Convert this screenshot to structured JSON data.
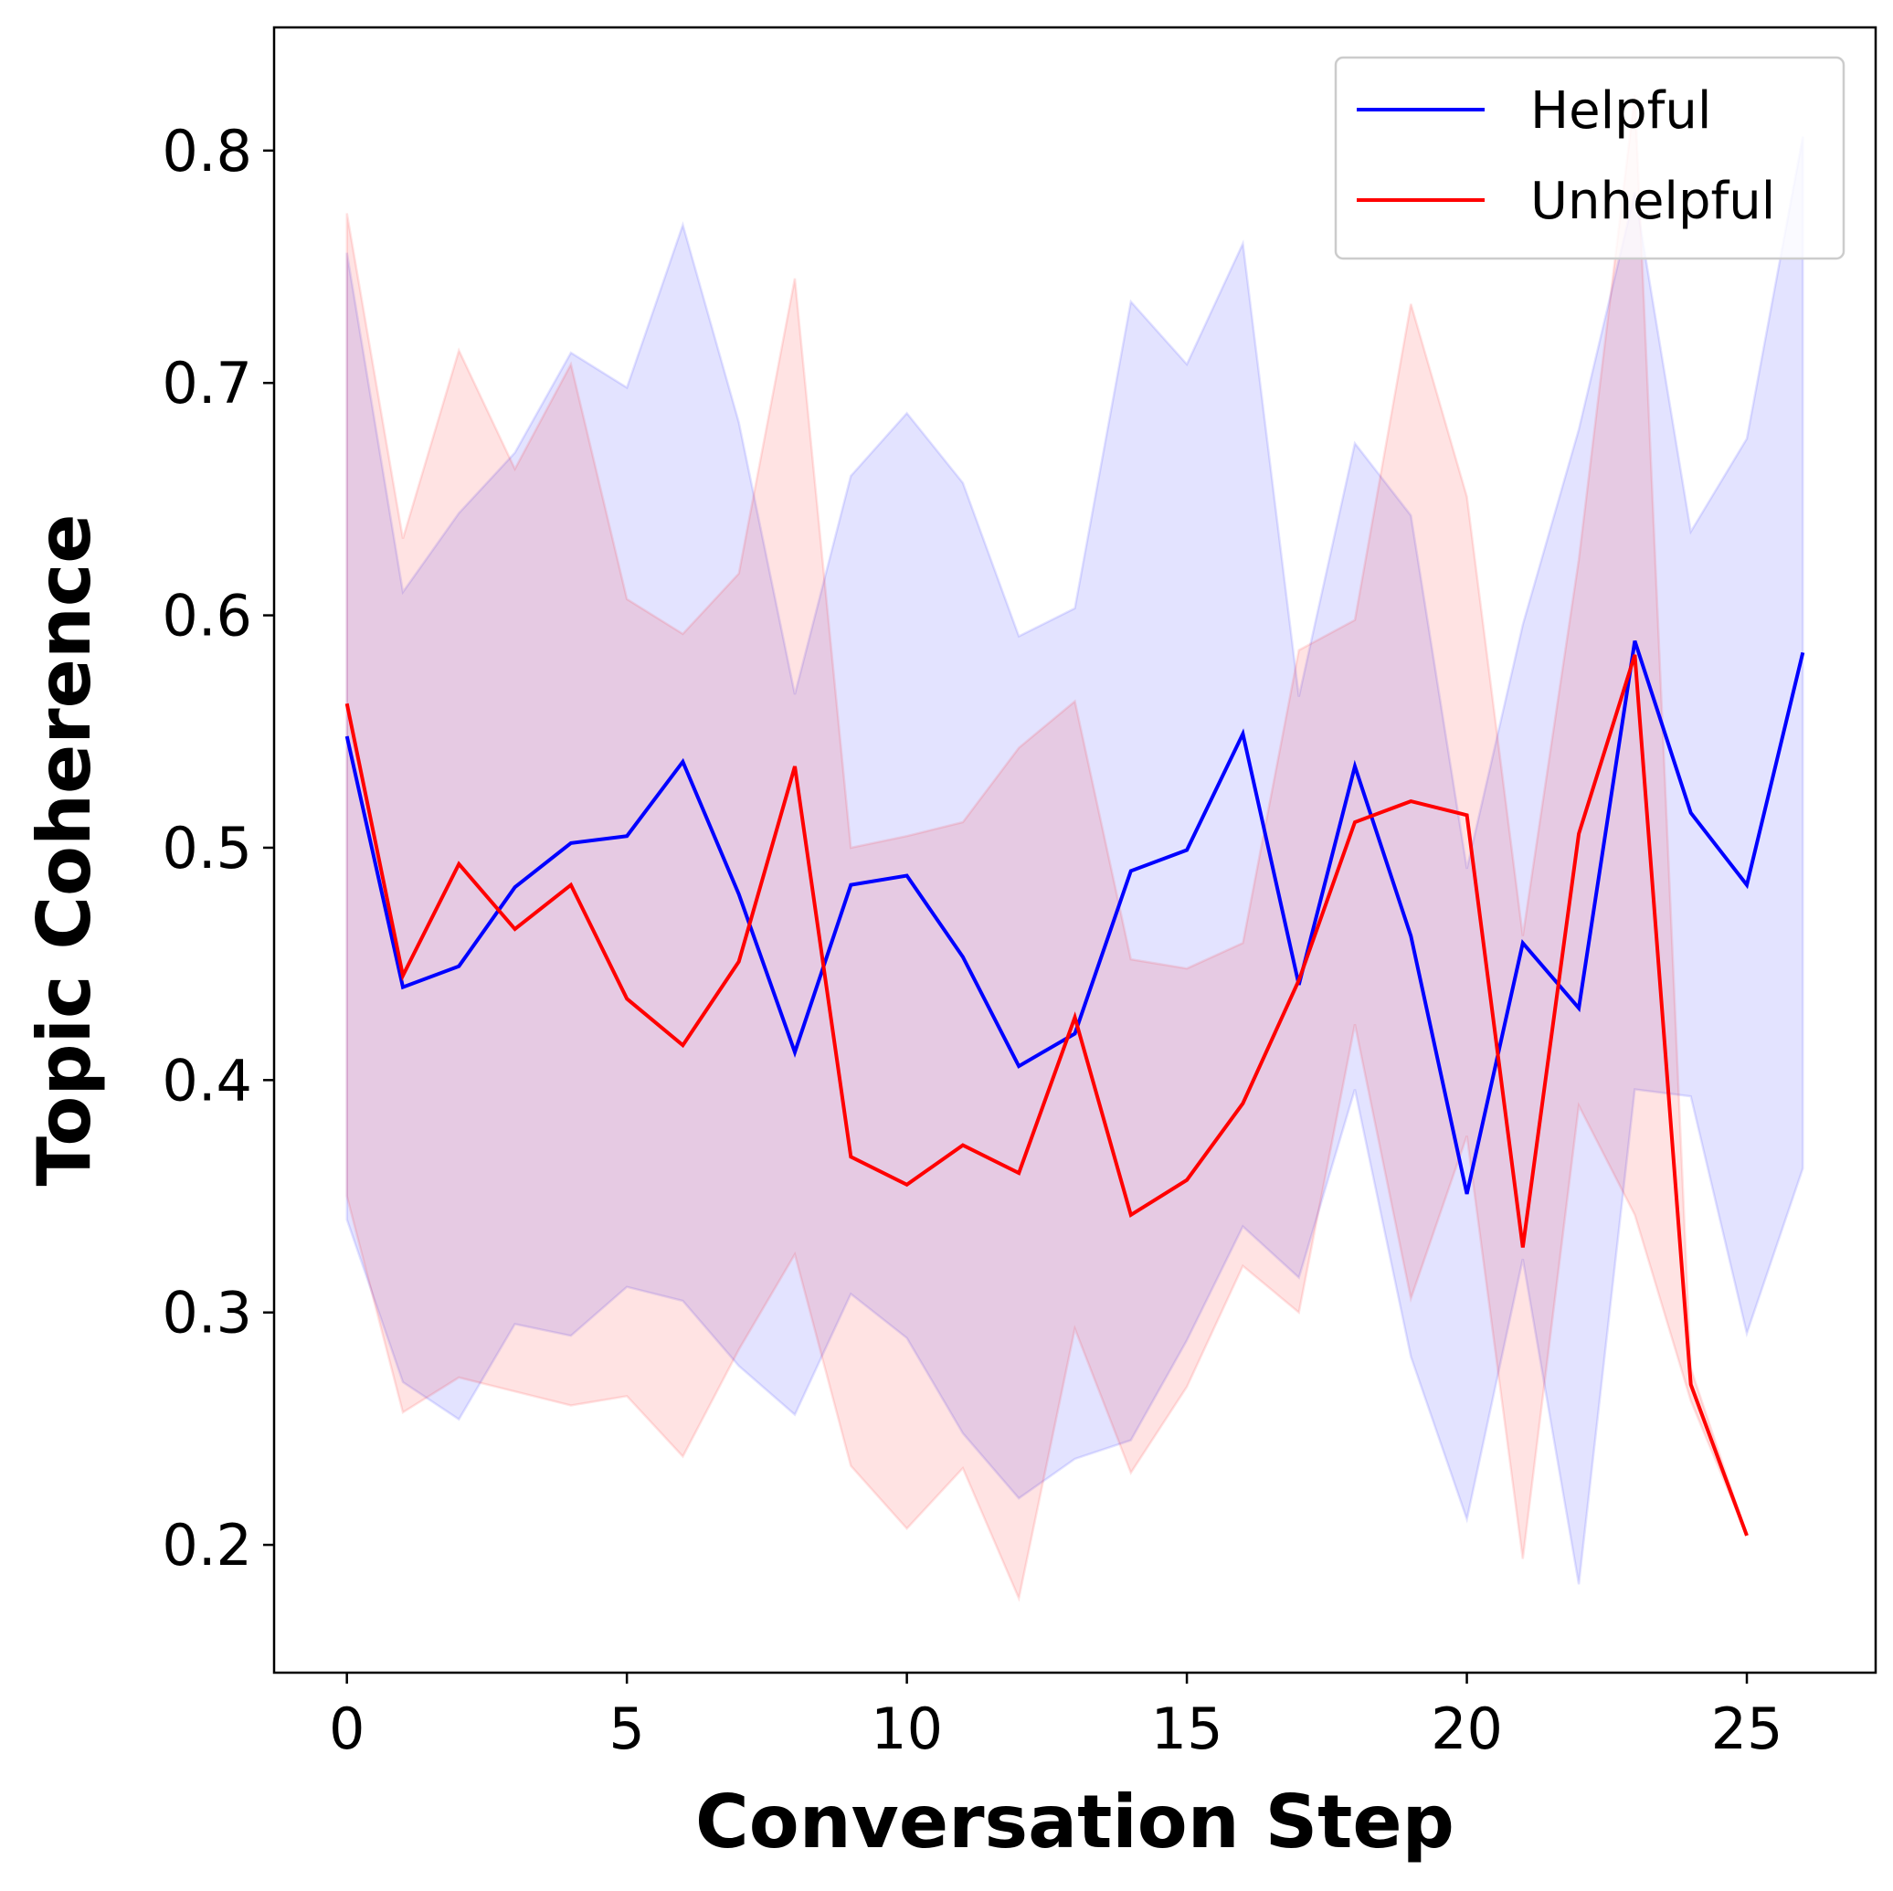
{
  "chart_data": {
    "type": "line",
    "title": "",
    "xlabel": "Conversation Step",
    "ylabel": "Topic Coherence",
    "xlim": [
      -1.3,
      27.3
    ],
    "ylim": [
      0.145,
      0.853
    ],
    "xticks": [
      0,
      5,
      10,
      15,
      20,
      25
    ],
    "yticks": [
      0.2,
      0.3,
      0.4,
      0.5,
      0.6,
      0.7,
      0.8
    ],
    "xtick_labels": [
      "0",
      "5",
      "10",
      "15",
      "20",
      "25"
    ],
    "ytick_labels": [
      "0.2",
      "0.3",
      "0.4",
      "0.5",
      "0.6",
      "0.7",
      "0.8"
    ],
    "grid": false,
    "legend_position": "top-right",
    "series": [
      {
        "name": "Helpful",
        "color": "#0000ff",
        "x": [
          0,
          1,
          2,
          3,
          4,
          5,
          6,
          7,
          8,
          9,
          10,
          11,
          12,
          13,
          14,
          15,
          16,
          17,
          18,
          19,
          20,
          21,
          22,
          23,
          24,
          25,
          26
        ],
        "mean": [
          0.548,
          0.44,
          0.449,
          0.483,
          0.502,
          0.505,
          0.537,
          0.48,
          0.412,
          0.484,
          0.488,
          0.453,
          0.406,
          0.42,
          0.49,
          0.499,
          0.549,
          0.441,
          0.535,
          0.462,
          0.351,
          0.459,
          0.431,
          0.589,
          0.515,
          0.484,
          0.584
        ],
        "lower": [
          0.34,
          0.27,
          0.254,
          0.295,
          0.29,
          0.311,
          0.305,
          0.277,
          0.256,
          0.308,
          0.289,
          0.248,
          0.22,
          0.237,
          0.245,
          0.288,
          0.337,
          0.315,
          0.396,
          0.281,
          0.211,
          0.323,
          0.183,
          0.396,
          0.393,
          0.291,
          0.362
        ],
        "upper": [
          0.756,
          0.61,
          0.644,
          0.67,
          0.713,
          0.698,
          0.768,
          0.683,
          0.566,
          0.66,
          0.687,
          0.657,
          0.591,
          0.603,
          0.735,
          0.708,
          0.76,
          0.565,
          0.674,
          0.643,
          0.491,
          0.596,
          0.68,
          0.782,
          0.636,
          0.676,
          0.806
        ]
      },
      {
        "name": "Unhelpful",
        "color": "#ff0000",
        "x": [
          0,
          1,
          2,
          3,
          4,
          5,
          6,
          7,
          8,
          9,
          10,
          11,
          12,
          13,
          14,
          15,
          16,
          17,
          18,
          19,
          20,
          21,
          22,
          23,
          24,
          25
        ],
        "mean": [
          0.562,
          0.445,
          0.493,
          0.465,
          0.484,
          0.435,
          0.415,
          0.451,
          0.535,
          0.367,
          0.355,
          0.372,
          0.36,
          0.427,
          0.342,
          0.357,
          0.39,
          0.443,
          0.511,
          0.52,
          0.514,
          0.328,
          0.506,
          0.583,
          0.269,
          0.204
        ],
        "lower": [
          0.35,
          0.257,
          0.272,
          0.266,
          0.26,
          0.264,
          0.238,
          0.284,
          0.325,
          0.234,
          0.207,
          0.233,
          0.177,
          0.293,
          0.231,
          0.268,
          0.32,
          0.3,
          0.424,
          0.306,
          0.376,
          0.194,
          0.389,
          0.342,
          0.262,
          0.204
        ],
        "upper": [
          0.773,
          0.633,
          0.714,
          0.663,
          0.708,
          0.607,
          0.592,
          0.618,
          0.745,
          0.5,
          0.505,
          0.511,
          0.543,
          0.563,
          0.452,
          0.448,
          0.459,
          0.585,
          0.598,
          0.734,
          0.651,
          0.462,
          0.624,
          0.824,
          0.276,
          0.204
        ]
      }
    ]
  }
}
